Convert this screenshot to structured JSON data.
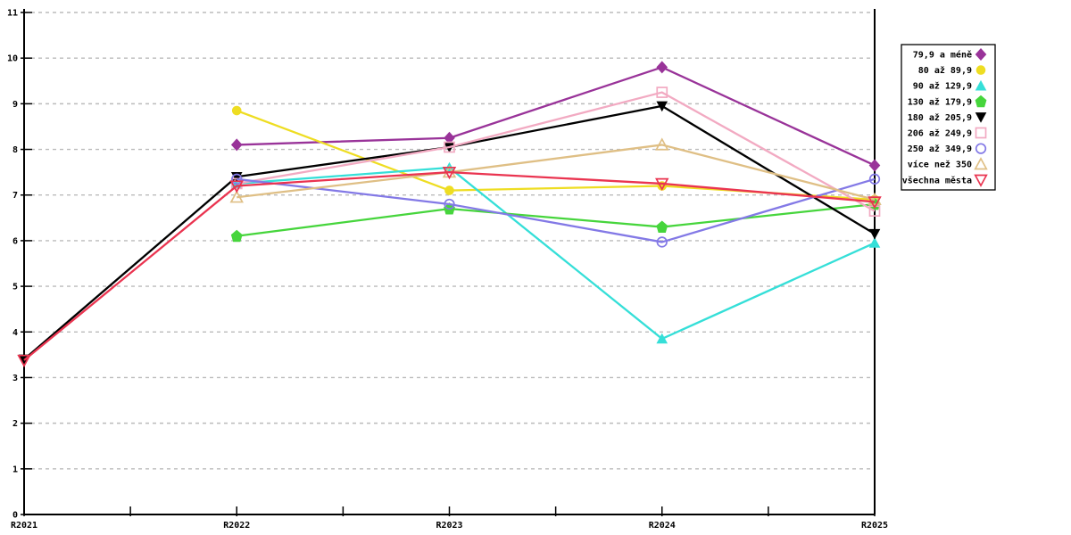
{
  "chart_data": {
    "type": "line",
    "title": "",
    "xlabel": "",
    "ylabel": "",
    "grid": "horizontal dashed gridlines at each integer",
    "grid_color": "#BBBBBB",
    "axis_color": "#000000",
    "legend_position": "right",
    "x_categories": [
      "R2021",
      "R2022",
      "R2023",
      "R2024",
      "R2025"
    ],
    "y_ticks": [
      "0",
      "1",
      "2",
      "3",
      "4",
      "5",
      "6",
      "7",
      "8",
      "9",
      "10",
      "11"
    ],
    "ylim": [
      0,
      11
    ],
    "series": [
      {
        "name": "79,9 a méně",
        "color": "#993399",
        "marker": "diamond-filled",
        "values": [
          null,
          8.1,
          8.25,
          9.8,
          7.65
        ]
      },
      {
        "name": "80 až 89,9",
        "color": "#EEDD22",
        "marker": "circle-filled",
        "values": [
          null,
          8.85,
          7.1,
          7.2,
          6.9
        ]
      },
      {
        "name": "90 až 129,9",
        "color": "#35DFD8",
        "marker": "triangle-up-filled",
        "values": [
          null,
          7.25,
          7.6,
          3.85,
          5.95
        ]
      },
      {
        "name": "130 až 179,9",
        "color": "#46D53C",
        "marker": "pentagon-filled",
        "values": [
          null,
          6.1,
          6.7,
          6.3,
          6.8
        ]
      },
      {
        "name": "180 až 205,9",
        "color": "#000000",
        "marker": "triangle-down-filled",
        "values": [
          3.4,
          7.4,
          8.05,
          8.95,
          6.15
        ]
      },
      {
        "name": "206 až 249,9",
        "color": "#F2AAC2",
        "marker": "square-hollow",
        "values": [
          null,
          7.25,
          8.05,
          9.25,
          6.65
        ]
      },
      {
        "name": "250 až 349,9",
        "color": "#8379E6",
        "marker": "circle-hollow",
        "values": [
          null,
          7.35,
          6.8,
          5.97,
          7.35
        ]
      },
      {
        "name": "více než 350",
        "color": "#DFBF85",
        "marker": "triangle-up-hollow",
        "values": [
          null,
          6.95,
          7.5,
          8.1,
          6.9
        ]
      },
      {
        "name": "všechna města",
        "color": "#EA3450",
        "marker": "triangle-down-hollow",
        "values": [
          3.38,
          7.2,
          7.5,
          7.25,
          6.85
        ]
      }
    ]
  }
}
